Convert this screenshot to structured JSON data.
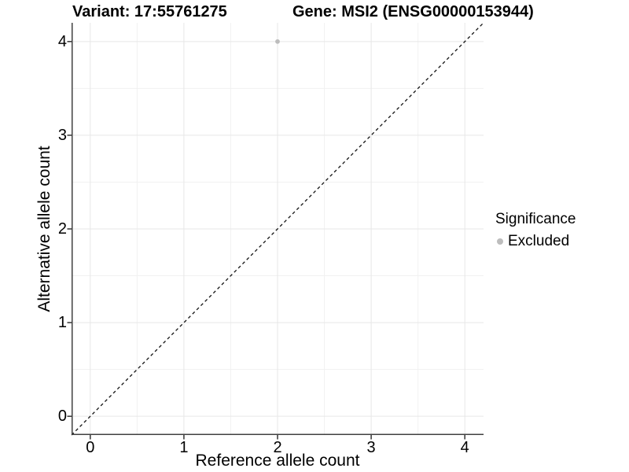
{
  "titles": {
    "variant": "Variant: 17:55761275",
    "gene": "Gene: MSI2 (ENSG00000153944)"
  },
  "axes": {
    "x_label": "Reference allele count",
    "y_label": "Alternative allele count"
  },
  "legend": {
    "title": "Significance",
    "entries": [
      {
        "label": "Excluded",
        "color": "#bdbdbd"
      }
    ]
  },
  "chart_data": {
    "type": "scatter",
    "title": "Variant: 17:55761275 — Gene: MSI2 (ENSG00000153944)",
    "xlabel": "Reference allele count",
    "ylabel": "Alternative allele count",
    "xlim": [
      -0.2,
      4.2
    ],
    "ylim": [
      -0.2,
      4.2
    ],
    "xticks": [
      0,
      1,
      2,
      3,
      4
    ],
    "yticks": [
      0,
      1,
      2,
      3,
      4
    ],
    "x_minor": [
      0.5,
      1.5,
      2.5,
      3.5
    ],
    "y_minor": [
      0.5,
      1.5,
      2.5,
      3.5
    ],
    "grid": true,
    "legend_position": "right",
    "series": [
      {
        "name": "Excluded",
        "color": "#bdbdbd",
        "points": [
          {
            "x": 2,
            "y": 4
          }
        ]
      }
    ],
    "reference_line": {
      "type": "identity",
      "style": "dashed",
      "color": "#111111",
      "from": [
        -0.2,
        -0.2
      ],
      "to": [
        4.2,
        4.2
      ]
    }
  }
}
